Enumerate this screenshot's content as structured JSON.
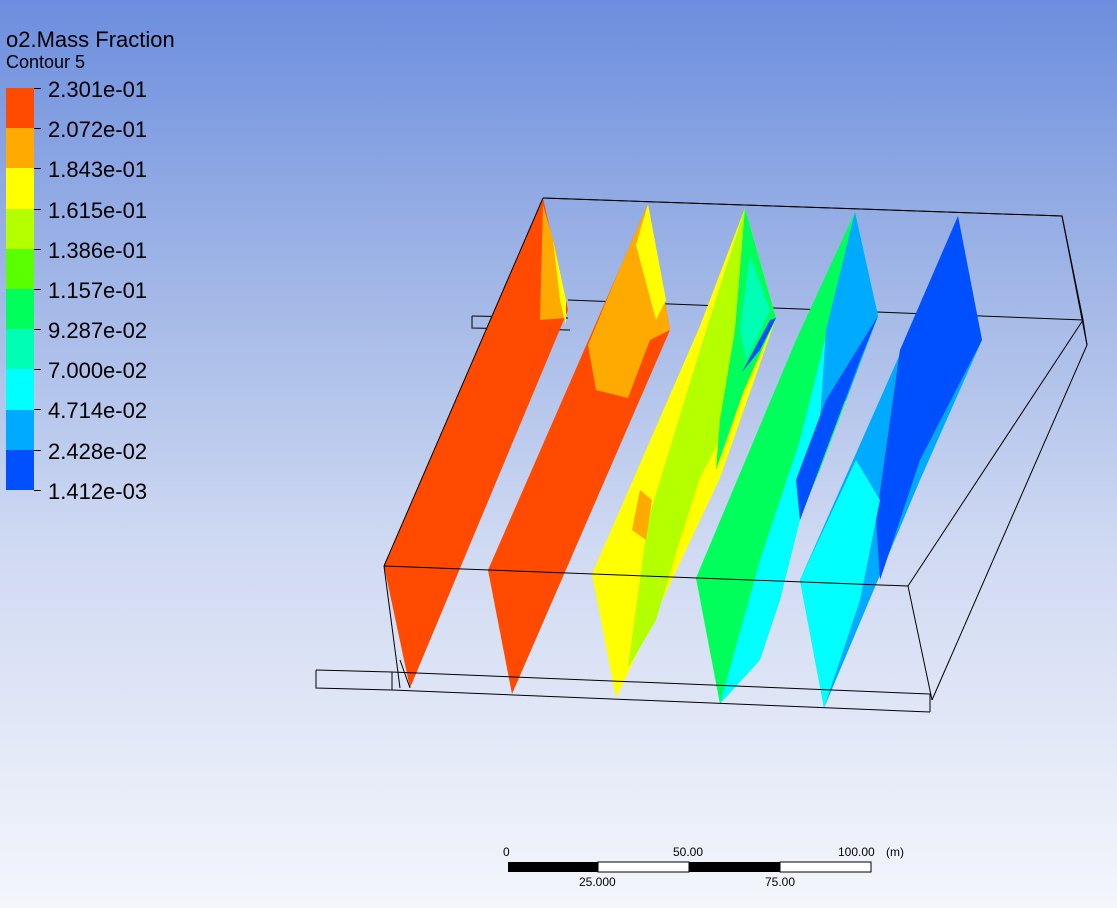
{
  "legend": {
    "variable": "o2.Mass Fraction",
    "contour_name": "Contour 5",
    "levels": [
      "2.301e-01",
      "2.072e-01",
      "1.843e-01",
      "1.615e-01",
      "1.386e-01",
      "1.157e-01",
      "9.287e-02",
      "7.000e-02",
      "4.714e-02",
      "2.428e-02",
      "1.412e-03"
    ],
    "band_colors": [
      "#ff4a00",
      "#ffaa00",
      "#ffff00",
      "#b4ff00",
      "#5aff00",
      "#00ff5a",
      "#00ffb4",
      "#00ffff",
      "#00aaff",
      "#0050ff"
    ]
  },
  "scale_bar": {
    "top_labels": [
      "0",
      "50.00",
      "100.00"
    ],
    "bottom_labels": [
      "25.000",
      "75.00"
    ],
    "unit": "(m)"
  },
  "colors": {
    "red": "#ff4a00",
    "orange": "#ffaa00",
    "yellow": "#ffff00",
    "yellowgreen": "#b4ff00",
    "green": "#00ff5a",
    "cyan": "#00ffff",
    "skyblue": "#00aaff",
    "blue": "#0050ff"
  }
}
